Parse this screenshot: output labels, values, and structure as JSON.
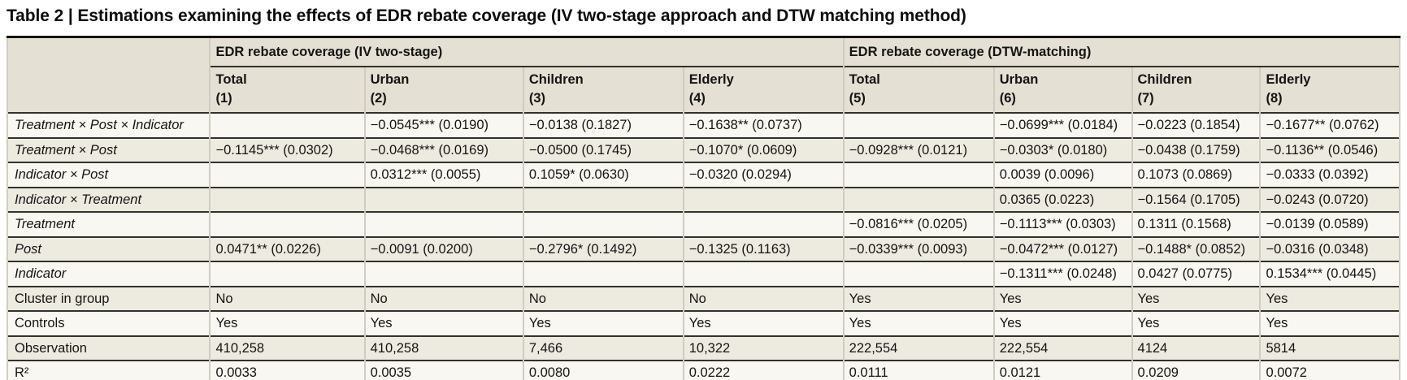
{
  "title": "Table 2 | Estimations examining the effects of EDR rebate coverage (IV two-stage approach and DTW matching method)",
  "table": {
    "group_headers": [
      {
        "label": "EDR rebate coverage (IV two-stage)",
        "span": 4
      },
      {
        "label": "EDR rebate coverage (DTW-matching)",
        "span": 4
      }
    ],
    "columns": [
      {
        "name": "Total",
        "number": "(1)"
      },
      {
        "name": "Urban",
        "number": "(2)"
      },
      {
        "name": "Children",
        "number": "(3)"
      },
      {
        "name": "Elderly",
        "number": "(4)"
      },
      {
        "name": "Total",
        "number": "(5)"
      },
      {
        "name": "Urban",
        "number": "(6)"
      },
      {
        "name": "Children",
        "number": "(7)"
      },
      {
        "name": "Elderly",
        "number": "(8)"
      }
    ],
    "rows": [
      {
        "label": "Treatment × Post × Indicator",
        "italic": true,
        "cells": [
          "",
          "−0.0545*** (0.0190)",
          "−0.0138 (0.1827)",
          "−0.1638** (0.0737)",
          "",
          "−0.0699*** (0.0184)",
          "−0.0223 (0.1854)",
          "−0.1677** (0.0762)"
        ]
      },
      {
        "label": "Treatment × Post",
        "italic": true,
        "cells": [
          "−0.1145*** (0.0302)",
          "−0.0468*** (0.0169)",
          "−0.0500 (0.1745)",
          "−0.1070* (0.0609)",
          "−0.0928*** (0.0121)",
          "−0.0303* (0.0180)",
          "−0.0438 (0.1759)",
          "−0.1136** (0.0546)"
        ]
      },
      {
        "label": "Indicator × Post",
        "italic": true,
        "cells": [
          "",
          "0.0312*** (0.0055)",
          "0.1059* (0.0630)",
          "−0.0320 (0.0294)",
          "",
          "0.0039 (0.0096)",
          "0.1073 (0.0869)",
          "−0.0333 (0.0392)"
        ]
      },
      {
        "label": "Indicator × Treatment",
        "italic": true,
        "cells": [
          "",
          "",
          "",
          "",
          "",
          "0.0365 (0.0223)",
          "−0.1564 (0.1705)",
          "−0.0243 (0.0720)"
        ]
      },
      {
        "label": "Treatment",
        "italic": true,
        "cells": [
          "",
          "",
          "",
          "",
          "−0.0816*** (0.0205)",
          "−0.1113*** (0.0303)",
          "0.1311 (0.1568)",
          "−0.0139 (0.0589)"
        ]
      },
      {
        "label": "Post",
        "italic": true,
        "cells": [
          "0.0471** (0.0226)",
          "−0.0091 (0.0200)",
          "−0.2796* (0.1492)",
          "−0.1325 (0.1163)",
          "−0.0339*** (0.0093)",
          "−0.0472*** (0.0127)",
          "−0.1488* (0.0852)",
          "−0.0316 (0.0348)"
        ]
      },
      {
        "label": "Indicator",
        "italic": true,
        "cells": [
          "",
          "",
          "",
          "",
          "",
          "−0.1311*** (0.0248)",
          "0.0427 (0.0775)",
          "0.1534*** (0.0445)"
        ]
      },
      {
        "label": "Cluster in group",
        "italic": false,
        "cells": [
          "No",
          "No",
          "No",
          "No",
          "Yes",
          "Yes",
          "Yes",
          "Yes"
        ]
      },
      {
        "label": "Controls",
        "italic": false,
        "cells": [
          "Yes",
          "Yes",
          "Yes",
          "Yes",
          "Yes",
          "Yes",
          "Yes",
          "Yes"
        ]
      },
      {
        "label": "Observation",
        "italic": false,
        "cells": [
          "410,258",
          "410,258",
          "7,466",
          "10,322",
          "222,554",
          "222,554",
          "4124",
          "5814"
        ]
      },
      {
        "label": "R²",
        "italic": false,
        "cells": [
          "0.0033",
          "0.0035",
          "0.0080",
          "0.0222",
          "0.0111",
          "0.0121",
          "0.0209",
          "0.0072"
        ]
      }
    ]
  },
  "colors": {
    "header_bg": "#e4e0d3",
    "row_odd_bg": "#f9f7f1",
    "row_even_bg": "#edebdf",
    "rule": "#33312b",
    "rule_heavy": "#16150f",
    "gap": "#cfccc1",
    "text": "#141414"
  }
}
